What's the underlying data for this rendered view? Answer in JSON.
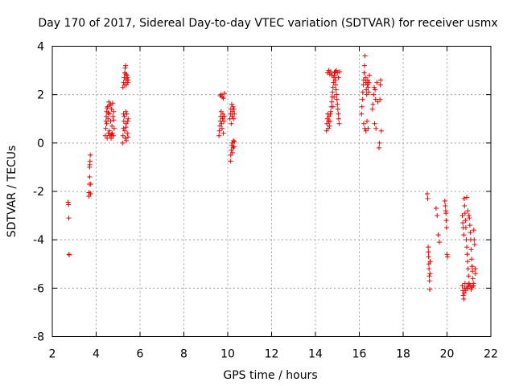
{
  "chart_data": {
    "type": "scatter",
    "title": "Day 170 of 2017, Sidereal Day-to-day VTEC variation (SDTVAR) for receiver usmx",
    "xlabel": "GPS time / hours",
    "ylabel": "SDTVAR / TECUs",
    "xlim": [
      2,
      22
    ],
    "ylim": [
      -8,
      4
    ],
    "xticks": [
      2,
      4,
      6,
      8,
      10,
      12,
      14,
      16,
      18,
      20,
      22
    ],
    "yticks": [
      -8,
      -6,
      -4,
      -2,
      0,
      2,
      4
    ],
    "grid": true,
    "marker": "+",
    "color": "#ee0000",
    "series": [
      {
        "name": "SDTVAR",
        "points": [
          [
            2.72,
            -2.45
          ],
          [
            2.74,
            -2.55
          ],
          [
            2.75,
            -3.1
          ],
          [
            2.76,
            -4.6
          ],
          [
            2.77,
            -4.62
          ],
          [
            3.66,
            -2.2
          ],
          [
            3.67,
            -2.05
          ],
          [
            3.69,
            -1.7
          ],
          [
            3.7,
            -1.4
          ],
          [
            3.7,
            -1.0
          ],
          [
            3.71,
            -0.9
          ],
          [
            3.72,
            -0.75
          ],
          [
            3.73,
            -0.5
          ],
          [
            3.74,
            -2.1
          ],
          [
            3.75,
            -1.7
          ],
          [
            4.42,
            0.3
          ],
          [
            4.44,
            0.6
          ],
          [
            4.45,
            0.9
          ],
          [
            4.46,
            1.1
          ],
          [
            4.47,
            1.3
          ],
          [
            4.48,
            0.8
          ],
          [
            4.5,
            0.2
          ],
          [
            4.52,
            1.5
          ],
          [
            4.54,
            1.0
          ],
          [
            4.56,
            0.4
          ],
          [
            4.58,
            1.7
          ],
          [
            4.6,
            1.2
          ],
          [
            4.62,
            0.3
          ],
          [
            4.64,
            1.6
          ],
          [
            4.66,
            0.9
          ],
          [
            4.68,
            0.2
          ],
          [
            4.7,
            1.4
          ],
          [
            4.72,
            0.7
          ],
          [
            4.74,
            0.4
          ],
          [
            4.76,
            1.1
          ],
          [
            4.78,
            0.3
          ],
          [
            4.8,
            1.3
          ],
          [
            4.82,
            0.6
          ],
          [
            4.5,
            1.45
          ],
          [
            4.55,
            1.25
          ],
          [
            4.6,
            0.5
          ],
          [
            4.65,
            1.55
          ],
          [
            4.7,
            0.35
          ],
          [
            4.75,
            1.65
          ],
          [
            4.8,
            0.95
          ],
          [
            5.2,
            0.0
          ],
          [
            5.22,
            0.3
          ],
          [
            5.24,
            0.6
          ],
          [
            5.26,
            0.9
          ],
          [
            5.28,
            1.1
          ],
          [
            5.3,
            0.5
          ],
          [
            5.32,
            0.2
          ],
          [
            5.34,
            1.3
          ],
          [
            5.36,
            0.8
          ],
          [
            5.38,
            0.1
          ],
          [
            5.4,
            1.2
          ],
          [
            5.42,
            0.4
          ],
          [
            5.44,
            0.9
          ],
          [
            5.46,
            1.0
          ],
          [
            5.25,
            1.2
          ],
          [
            5.35,
            0.65
          ],
          [
            5.45,
            0.25
          ],
          [
            5.22,
            2.3
          ],
          [
            5.25,
            2.5
          ],
          [
            5.28,
            2.7
          ],
          [
            5.3,
            2.9
          ],
          [
            5.32,
            3.1
          ],
          [
            5.34,
            3.2
          ],
          [
            5.36,
            2.6
          ],
          [
            5.38,
            2.4
          ],
          [
            5.4,
            2.8
          ],
          [
            5.42,
            2.7
          ],
          [
            5.44,
            2.5
          ],
          [
            5.46,
            2.6
          ],
          [
            5.3,
            2.4
          ],
          [
            5.36,
            2.85
          ],
          [
            9.6,
            0.3
          ],
          [
            9.62,
            0.5
          ],
          [
            9.64,
            0.7
          ],
          [
            9.66,
            0.9
          ],
          [
            9.68,
            1.1
          ],
          [
            9.7,
            1.3
          ],
          [
            9.72,
            0.8
          ],
          [
            9.74,
            0.6
          ],
          [
            9.76,
            1.0
          ],
          [
            9.78,
            1.2
          ],
          [
            9.8,
            0.4
          ],
          [
            9.82,
            0.9
          ],
          [
            9.84,
            1.1
          ],
          [
            9.65,
            1.95
          ],
          [
            9.7,
            2.0
          ],
          [
            9.75,
            1.9
          ],
          [
            9.8,
            1.85
          ],
          [
            9.85,
            2.05
          ],
          [
            10.1,
            1.0
          ],
          [
            10.12,
            1.2
          ],
          [
            10.14,
            1.4
          ],
          [
            10.16,
            0.8
          ],
          [
            10.18,
            1.6
          ],
          [
            10.2,
            1.1
          ],
          [
            10.22,
            1.3
          ],
          [
            10.24,
            1.5
          ],
          [
            10.26,
            1.0
          ],
          [
            10.28,
            1.4
          ],
          [
            10.3,
            1.2
          ],
          [
            10.12,
            -0.75
          ],
          [
            10.14,
            -0.5
          ],
          [
            10.16,
            -0.3
          ],
          [
            10.18,
            -0.1
          ],
          [
            10.2,
            0.0
          ],
          [
            10.22,
            -0.4
          ],
          [
            10.24,
            -0.2
          ],
          [
            10.26,
            0.1
          ],
          [
            10.28,
            -0.15
          ],
          [
            10.3,
            0.05
          ],
          [
            14.5,
            0.5
          ],
          [
            14.52,
            0.8
          ],
          [
            14.54,
            1.0
          ],
          [
            14.56,
            1.2
          ],
          [
            14.58,
            0.6
          ],
          [
            14.6,
            0.9
          ],
          [
            14.62,
            1.1
          ],
          [
            14.64,
            0.7
          ],
          [
            14.66,
            0.9
          ],
          [
            14.68,
            1.2
          ],
          [
            14.7,
            1.3
          ],
          [
            14.72,
            1.5
          ],
          [
            14.74,
            1.7
          ],
          [
            14.76,
            1.9
          ],
          [
            14.78,
            2.1
          ],
          [
            14.8,
            2.3
          ],
          [
            14.82,
            2.5
          ],
          [
            14.84,
            2.7
          ],
          [
            14.86,
            2.9
          ],
          [
            14.88,
            2.8
          ],
          [
            14.9,
            2.6
          ],
          [
            14.92,
            2.4
          ],
          [
            14.94,
            2.2
          ],
          [
            14.96,
            2.0
          ],
          [
            14.98,
            1.8
          ],
          [
            15.0,
            1.6
          ],
          [
            15.02,
            1.4
          ],
          [
            15.04,
            1.2
          ],
          [
            15.06,
            1.0
          ],
          [
            15.08,
            0.8
          ],
          [
            14.55,
            2.9
          ],
          [
            14.6,
            3.0
          ],
          [
            14.65,
            2.85
          ],
          [
            14.7,
            2.95
          ],
          [
            14.75,
            2.8
          ],
          [
            14.8,
            1.5
          ],
          [
            14.85,
            1.9
          ],
          [
            14.9,
            2.95
          ],
          [
            14.95,
            3.0
          ],
          [
            15.0,
            2.9
          ],
          [
            15.05,
            2.7
          ],
          [
            15.1,
            2.95
          ],
          [
            16.1,
            1.2
          ],
          [
            16.12,
            1.5
          ],
          [
            16.14,
            1.8
          ],
          [
            16.16,
            2.1
          ],
          [
            16.18,
            2.4
          ],
          [
            16.2,
            2.6
          ],
          [
            16.22,
            2.9
          ],
          [
            16.24,
            3.2
          ],
          [
            16.26,
            3.6
          ],
          [
            16.28,
            2.7
          ],
          [
            16.3,
            2.5
          ],
          [
            16.32,
            2.2
          ],
          [
            16.34,
            2.0
          ],
          [
            16.36,
            2.4
          ],
          [
            16.38,
            2.6
          ],
          [
            16.4,
            2.3
          ],
          [
            16.42,
            2.1
          ],
          [
            16.44,
            2.5
          ],
          [
            16.46,
            2.8
          ],
          [
            16.2,
            0.8
          ],
          [
            16.25,
            0.6
          ],
          [
            16.3,
            0.5
          ],
          [
            16.35,
            0.9
          ],
          [
            16.4,
            0.6
          ],
          [
            16.6,
            1.4
          ],
          [
            16.62,
            1.6
          ],
          [
            16.65,
            2.0
          ],
          [
            16.68,
            2.3
          ],
          [
            16.7,
            0.8
          ],
          [
            16.72,
            2.2
          ],
          [
            16.74,
            1.8
          ],
          [
            16.76,
            0.6
          ],
          [
            16.8,
            2.5
          ],
          [
            16.85,
            1.7
          ],
          [
            16.9,
            -0.2
          ],
          [
            16.92,
            0.0
          ],
          [
            16.94,
            1.8
          ],
          [
            16.96,
            2.4
          ],
          [
            16.98,
            2.6
          ],
          [
            17.0,
            0.5
          ],
          [
            19.1,
            -2.1
          ],
          [
            19.12,
            -2.3
          ],
          [
            19.14,
            -4.3
          ],
          [
            19.15,
            -4.5
          ],
          [
            19.16,
            -4.7
          ],
          [
            19.17,
            -5.0
          ],
          [
            19.18,
            -5.2
          ],
          [
            19.19,
            -5.5
          ],
          [
            19.2,
            -5.7
          ],
          [
            19.21,
            -6.05
          ],
          [
            19.22,
            -5.4
          ],
          [
            19.23,
            -4.9
          ],
          [
            19.5,
            -2.7
          ],
          [
            19.55,
            -3.0
          ],
          [
            19.6,
            -3.8
          ],
          [
            19.65,
            -4.1
          ],
          [
            19.9,
            -2.4
          ],
          [
            19.92,
            -2.6
          ],
          [
            19.94,
            -2.8
          ],
          [
            19.96,
            -3.2
          ],
          [
            19.98,
            -3.5
          ],
          [
            20.0,
            -4.6
          ],
          [
            20.02,
            -4.7
          ],
          [
            19.95,
            -2.9
          ],
          [
            20.7,
            -3.0
          ],
          [
            20.72,
            -3.3
          ],
          [
            20.74,
            -3.5
          ],
          [
            20.76,
            -3.8
          ],
          [
            20.78,
            -2.3
          ],
          [
            20.8,
            -2.6
          ],
          [
            20.82,
            -2.9
          ],
          [
            20.84,
            -3.2
          ],
          [
            20.86,
            -3.5
          ],
          [
            20.88,
            -4.0
          ],
          [
            20.9,
            -4.3
          ],
          [
            20.92,
            -4.6
          ],
          [
            20.94,
            -4.9
          ],
          [
            20.96,
            -5.2
          ],
          [
            20.98,
            -5.5
          ],
          [
            21.0,
            -5.8
          ],
          [
            21.02,
            -3.1
          ],
          [
            21.04,
            -3.4
          ],
          [
            21.06,
            -3.7
          ],
          [
            21.08,
            -4.0
          ],
          [
            21.1,
            -4.4
          ],
          [
            21.12,
            -4.8
          ],
          [
            21.14,
            -5.1
          ],
          [
            21.16,
            -5.3
          ],
          [
            21.18,
            -5.6
          ],
          [
            21.2,
            -5.9
          ],
          [
            21.22,
            -3.6
          ],
          [
            21.24,
            -4.0
          ],
          [
            21.26,
            -4.2
          ],
          [
            21.28,
            -5.2
          ],
          [
            21.3,
            -5.4
          ],
          [
            20.7,
            -5.9
          ],
          [
            20.72,
            -6.1
          ],
          [
            20.74,
            -6.3
          ],
          [
            20.76,
            -6.45
          ],
          [
            20.78,
            -6.2
          ],
          [
            20.8,
            -6.0
          ],
          [
            20.82,
            -5.8
          ],
          [
            20.85,
            -6.1
          ],
          [
            20.9,
            -5.95
          ],
          [
            20.95,
            -6.0
          ],
          [
            21.0,
            -5.85
          ],
          [
            21.05,
            -5.9
          ],
          [
            21.1,
            -6.05
          ],
          [
            21.15,
            -5.95
          ],
          [
            21.2,
            -5.8
          ],
          [
            20.9,
            -2.25
          ],
          [
            20.95,
            -2.8
          ],
          [
            21.0,
            -3.0
          ]
        ]
      }
    ]
  }
}
